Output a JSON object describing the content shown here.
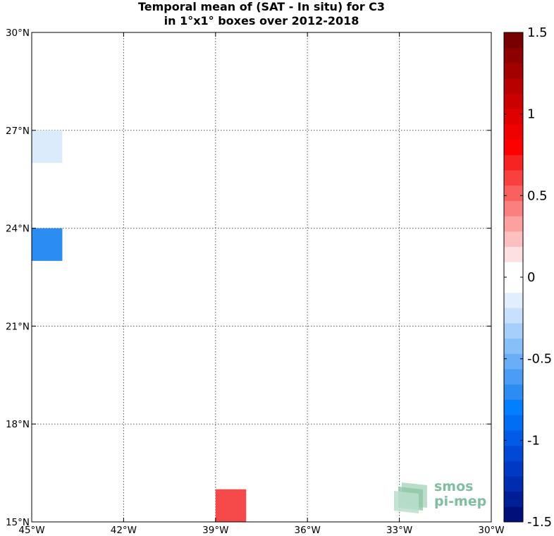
{
  "title": {
    "line1": "Temporal mean of (SAT - In situ) for C3",
    "line2": "in 1°x1° boxes over 2012-2018"
  },
  "logo": {
    "line1": "smos",
    "line2": "pi-mep",
    "color": "#7fbf9f"
  },
  "chart_data": {
    "type": "heatmap",
    "x_range": [
      -45,
      -30
    ],
    "y_range": [
      15,
      30
    ],
    "x_ticks": [
      {
        "value": -45,
        "label": "45°W"
      },
      {
        "value": -42,
        "label": "42°W"
      },
      {
        "value": -39,
        "label": "39°W"
      },
      {
        "value": -36,
        "label": "36°W"
      },
      {
        "value": -33,
        "label": "33°W"
      },
      {
        "value": -30,
        "label": "30°W"
      }
    ],
    "y_ticks": [
      {
        "value": 15,
        "label": "15°N"
      },
      {
        "value": 18,
        "label": "18°N"
      },
      {
        "value": 21,
        "label": "21°N"
      },
      {
        "value": 24,
        "label": "24°N"
      },
      {
        "value": 27,
        "label": "27°N"
      },
      {
        "value": 30,
        "label": "30°N"
      }
    ],
    "grid": true,
    "cells": [
      {
        "lon": -45,
        "lat": 26,
        "value": -0.15,
        "color": "#dcebfc"
      },
      {
        "lon": -45,
        "lat": 23,
        "value": -0.75,
        "color": "#2b8cf2"
      },
      {
        "lon": -39,
        "lat": 15,
        "value": 0.55,
        "color": "#f64949"
      }
    ],
    "colorbar": {
      "range": [
        -1.5,
        1.5
      ],
      "tick_values": [
        -1.5,
        -1,
        -0.5,
        0,
        0.5,
        1,
        1.5
      ],
      "tick_labels": [
        "-1.5",
        "-1",
        "-0.5",
        "0",
        "0.5",
        "1",
        "1.5"
      ],
      "colors": [
        "#000f7a",
        "#001f96",
        "#002db0",
        "#0039c4",
        "#0049d6",
        "#005ce6",
        "#006ef2",
        "#0080ff",
        "#2b8cf2",
        "#4a9cf5",
        "#69aef7",
        "#87bff9",
        "#a6cffb",
        "#c8e0fc",
        "#e0eefd",
        "#ffffff",
        "#ffffff",
        "#fde0e0",
        "#fcc0c0",
        "#fca0a0",
        "#fb7f7f",
        "#f96060",
        "#f84040",
        "#f72222",
        "#ff0000",
        "#f00000",
        "#e00000",
        "#cc0000",
        "#b80000",
        "#a30000",
        "#8c0000",
        "#780000"
      ]
    }
  }
}
